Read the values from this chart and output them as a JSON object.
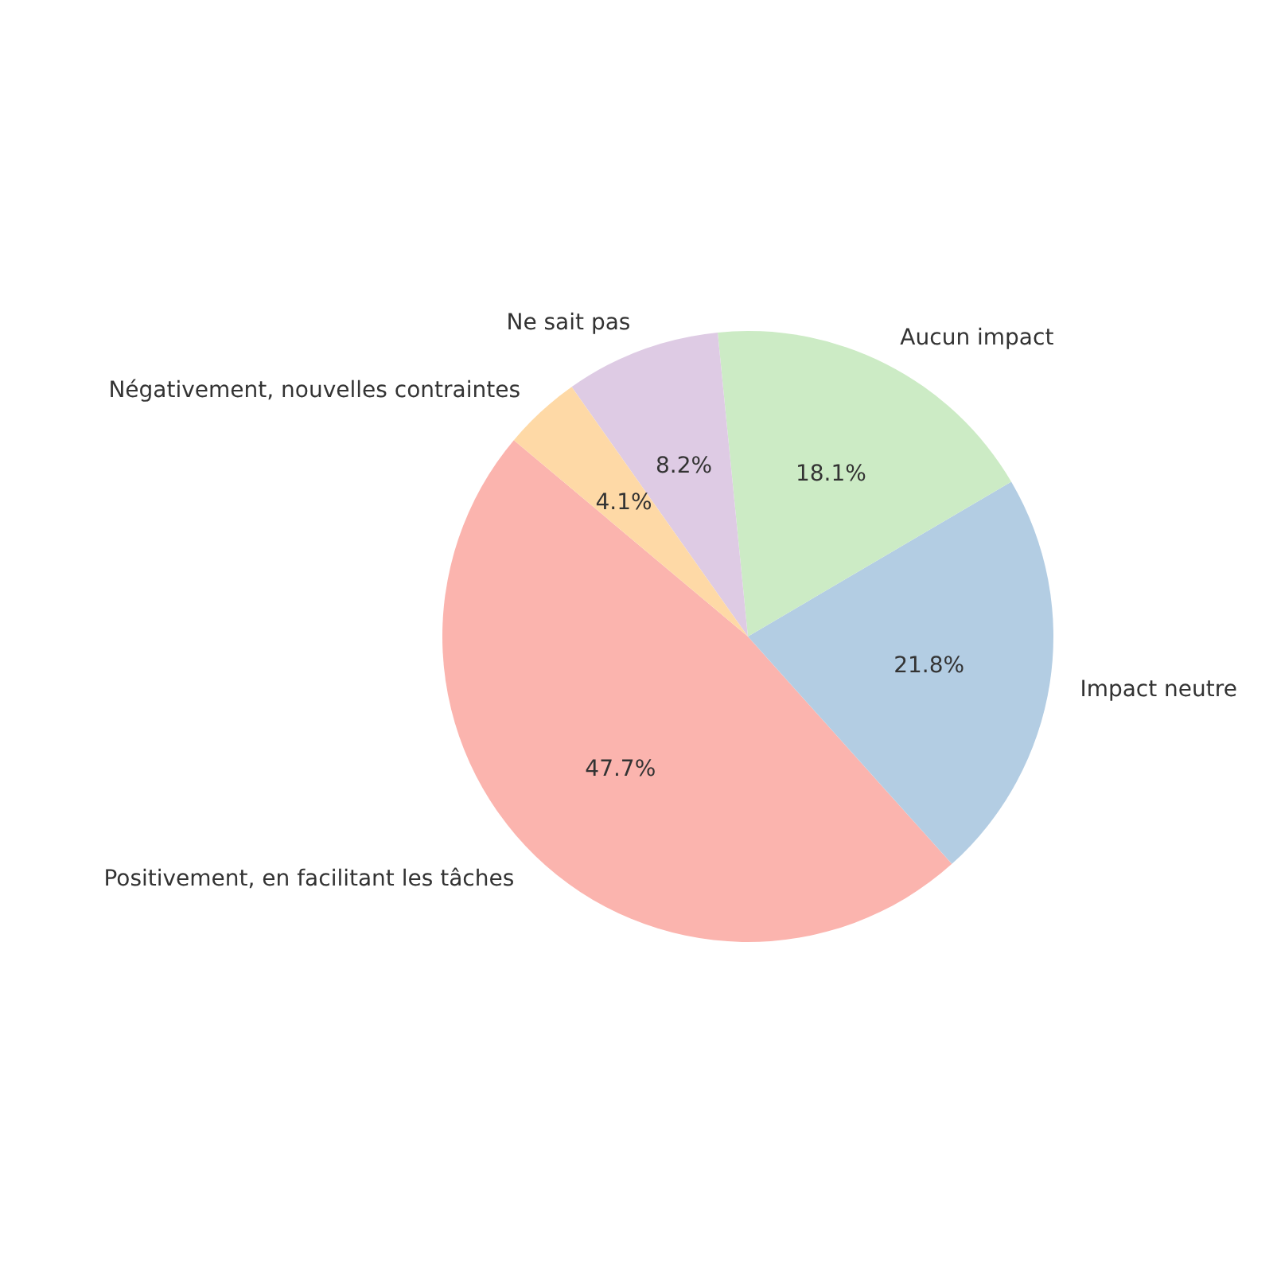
{
  "chart_data": {
    "type": "pie",
    "categories": [
      "Positivement, en facilitant les tâches",
      "Impact neutre",
      "Aucun impact",
      "Ne sait pas",
      "Négativement, nouvelles contraintes"
    ],
    "values": [
      47.7,
      21.8,
      18.1,
      8.2,
      4.1
    ],
    "colors": [
      "#fbb4ae",
      "#b3cde3",
      "#ccebc5",
      "#decbe4",
      "#fed9a6"
    ],
    "value_labels": [
      "47.7%",
      "21.8%",
      "18.1%",
      "8.2%",
      "4.1%"
    ]
  }
}
